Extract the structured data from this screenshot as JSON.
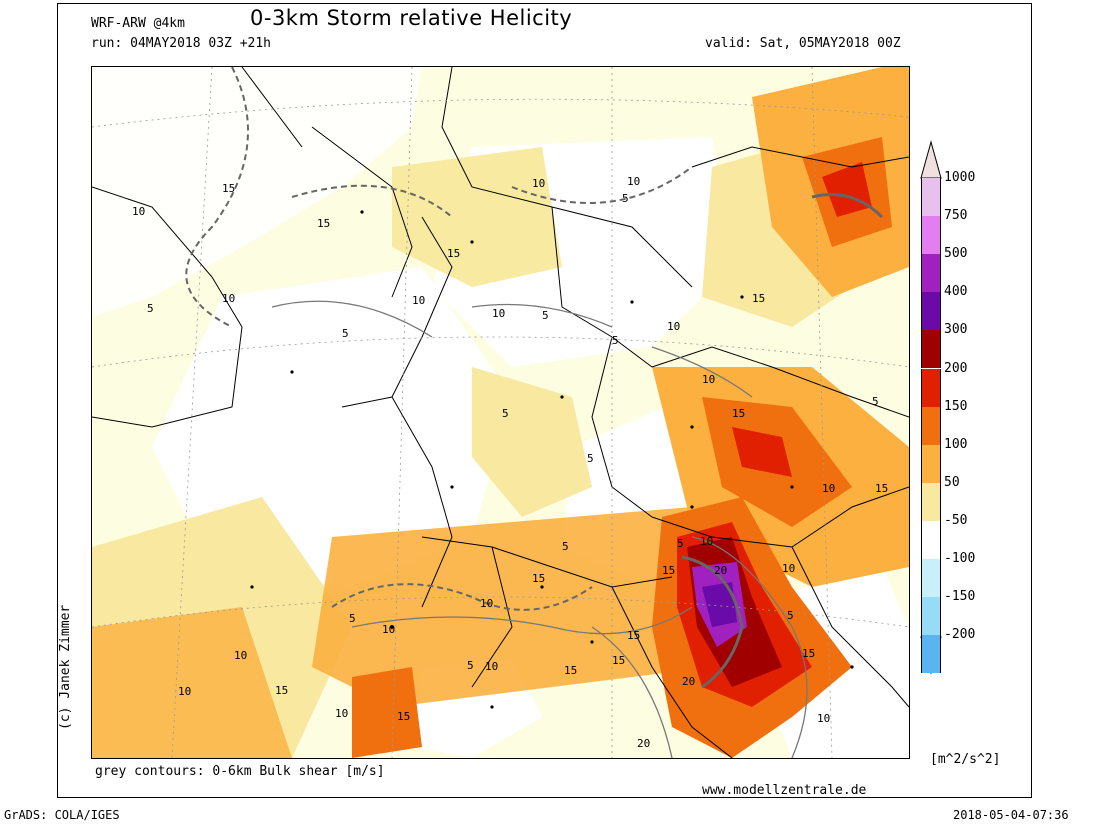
{
  "header": {
    "model": "WRF-ARW @4km",
    "title": "0-3km Storm relative Helicity",
    "run": "run: 04MAY2018 03Z +21h",
    "valid": "valid: Sat, 05MAY2018 00Z"
  },
  "footer": {
    "shear_note": "grey contours: 0-6km Bulk shear [m/s]",
    "website": "www.modellzentrale.de",
    "grads": "GrADS: COLA/IGES",
    "timestamp": "2018-05-04-07:36",
    "copyright": "(c) Janek Zimmer"
  },
  "colorbar": {
    "unit": "[m^2/s^2]",
    "levels": [
      {
        "label": "1000",
        "color": "#e8c0ee"
      },
      {
        "label": "750",
        "color": "#e47ef0"
      },
      {
        "label": "500",
        "color": "#a020c0"
      },
      {
        "label": "400",
        "color": "#6a0aa8"
      },
      {
        "label": "300",
        "color": "#a00000"
      },
      {
        "label": "200",
        "color": "#e02000"
      },
      {
        "label": "150",
        "color": "#f07010"
      },
      {
        "label": "100",
        "color": "#fbb040"
      },
      {
        "label": "50",
        "color": "#f8e8a0"
      },
      {
        "label": "-50",
        "color": "#ffffff"
      },
      {
        "label": "-100",
        "color": "#c8f0fa"
      },
      {
        "label": "-150",
        "color": "#96dcf8"
      },
      {
        "label": "-200",
        "color": "#5ab4f0"
      }
    ],
    "bottom_color": "#2882e8",
    "top_color": "#f0e0e0"
  },
  "contour_labels": [
    "5",
    "10",
    "15",
    "20"
  ]
}
